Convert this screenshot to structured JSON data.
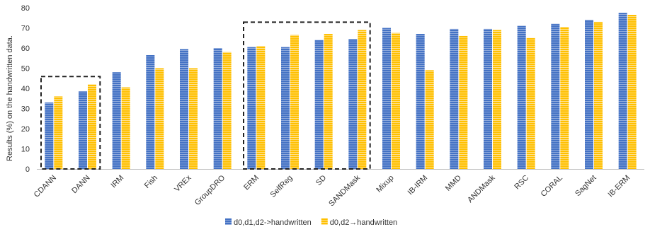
{
  "chart_data": {
    "type": "bar",
    "title": "",
    "xlabel": "",
    "ylabel": "Results (%) on the handwritten data.",
    "ylim": [
      0,
      80
    ],
    "yticks": [
      0,
      10,
      20,
      30,
      40,
      50,
      60,
      70,
      80
    ],
    "grid": false,
    "legend_position": "bottom",
    "categories": [
      "CDANN",
      "DANN",
      "IRM",
      "Fish",
      "VREx",
      "GroupDRO",
      "ERM",
      "SelfReg",
      "SD",
      "SANDMask",
      "Mixup",
      "IB-IRM",
      "MMD",
      "ANDMask",
      "RSC",
      "CORAL",
      "SagNet",
      "IB-ERM"
    ],
    "series": [
      {
        "name": "d0,d1,d2->handwritten",
        "color": "#4472C4",
        "values": [
          33,
          38.5,
          48,
          56.5,
          59.5,
          60,
          60.5,
          60.5,
          64,
          64.5,
          70,
          67,
          69.5,
          69.5,
          71,
          72,
          74,
          77.5
        ]
      },
      {
        "name": "d0,d2→handwritten",
        "color": "#FFC000",
        "values": [
          36,
          42,
          40.5,
          50,
          50,
          58,
          61,
          66.5,
          67,
          69,
          67.5,
          49,
          66,
          69,
          65,
          70.5,
          73,
          76.5
        ]
      }
    ],
    "highlight_groups": [
      [
        "CDANN",
        "DANN"
      ],
      [
        "ERM",
        "SelfReg",
        "SD",
        "SANDMask"
      ]
    ]
  }
}
